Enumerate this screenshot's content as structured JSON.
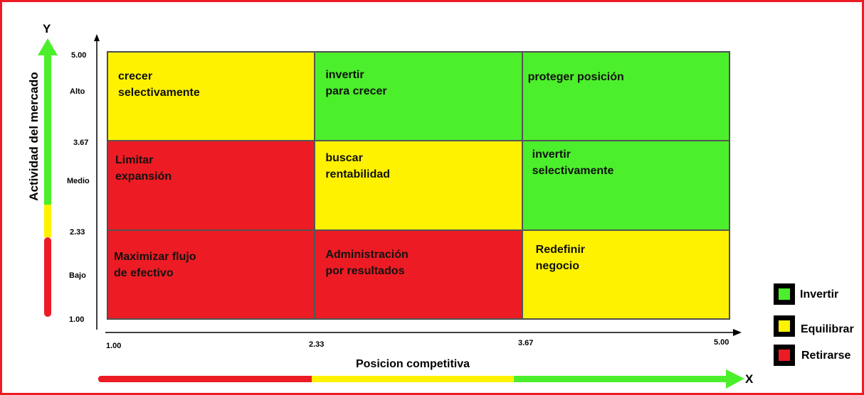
{
  "axes": {
    "y_letter": "Y",
    "x_letter": "X",
    "y_title": "Actividad del mercado",
    "x_title": "Posicion competitiva",
    "y_ticks": [
      "5.00",
      "Alto",
      "3.67",
      "Medio",
      "2.33",
      "Bajo",
      "1.00"
    ],
    "x_ticks": [
      "1.00",
      "2.33",
      "3.67",
      "5.00"
    ]
  },
  "colors": {
    "green": "#4cef2b",
    "yellow": "#fff200",
    "red": "#ed1c24"
  },
  "cells": [
    {
      "text": "crecer\nselectivamente",
      "color": "yellow"
    },
    {
      "text": "invertir\npara crecer",
      "color": "green"
    },
    {
      "text": "proteger posición",
      "color": "green"
    },
    {
      "text": "Limitar\nexpansión",
      "color": "red"
    },
    {
      "text": "buscar\nrentabilidad",
      "color": "yellow"
    },
    {
      "text": "invertir\nselectivamente",
      "color": "green"
    },
    {
      "text": "Maximizar flujo\nde efectivo",
      "color": "red"
    },
    {
      "text": "Administración\npor resultados",
      "color": "red"
    },
    {
      "text": "Redefinir\nnegocio",
      "color": "yellow"
    }
  ],
  "legend": [
    {
      "label": "Invertir",
      "color": "green"
    },
    {
      "label": "Equilibrar",
      "color": "yellow"
    },
    {
      "label": "Retirarse",
      "color": "red"
    }
  ]
}
